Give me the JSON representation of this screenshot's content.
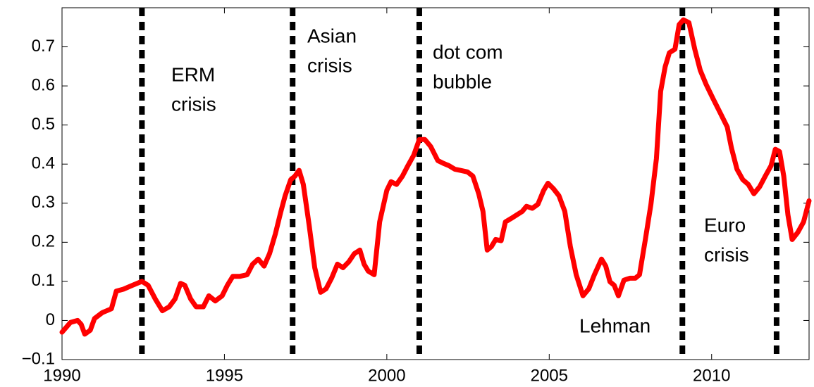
{
  "chart_data": {
    "type": "line",
    "x": [
      1990.0,
      1990.26,
      1990.48,
      1990.59,
      1990.7,
      1990.87,
      1991.0,
      1991.24,
      1991.52,
      1991.67,
      1991.89,
      1992.17,
      1992.46,
      1992.65,
      1992.87,
      1993.09,
      1993.3,
      1993.48,
      1993.65,
      1993.78,
      1993.96,
      1994.13,
      1994.35,
      1994.52,
      1994.72,
      1994.93,
      1995.09,
      1995.26,
      1995.48,
      1995.7,
      1995.87,
      1996.04,
      1996.22,
      1996.39,
      1996.57,
      1996.74,
      1996.87,
      1997.04,
      1997.17,
      1997.3,
      1997.43,
      1997.61,
      1997.78,
      1997.96,
      1998.13,
      1998.3,
      1998.48,
      1998.65,
      1998.83,
      1999.0,
      1999.17,
      1999.3,
      1999.43,
      1999.61,
      1999.78,
      2000.0,
      2000.13,
      2000.3,
      2000.48,
      2000.65,
      2000.83,
      2001.0,
      2001.17,
      2001.35,
      2001.57,
      2001.74,
      2001.91,
      2002.09,
      2002.26,
      2002.48,
      2002.65,
      2002.83,
      2002.96,
      2003.09,
      2003.22,
      2003.35,
      2003.52,
      2003.65,
      2003.83,
      2004.0,
      2004.17,
      2004.3,
      2004.48,
      2004.65,
      2004.83,
      2004.96,
      2005.13,
      2005.3,
      2005.48,
      2005.65,
      2005.83,
      2006.04,
      2006.22,
      2006.39,
      2006.61,
      2006.74,
      2006.87,
      2007.0,
      2007.13,
      2007.3,
      2007.48,
      2007.65,
      2007.78,
      2007.96,
      2008.13,
      2008.3,
      2008.43,
      2008.57,
      2008.7,
      2008.87,
      2009.0,
      2009.13,
      2009.3,
      2009.48,
      2009.65,
      2009.83,
      2010.04,
      2010.26,
      2010.48,
      2010.61,
      2010.78,
      2010.96,
      2011.13,
      2011.3,
      2011.48,
      2011.65,
      2011.83,
      2011.96,
      2012.09,
      2012.22,
      2012.35,
      2012.48,
      2012.65,
      2012.83,
      2013.0
    ],
    "series": [
      {
        "color": "#ff0000",
        "values": [
          -0.03,
          -0.005,
          0.0,
          -0.01,
          -0.035,
          -0.025,
          0.005,
          0.02,
          0.03,
          0.075,
          0.08,
          0.09,
          0.1,
          0.09,
          0.055,
          0.025,
          0.035,
          0.055,
          0.095,
          0.09,
          0.055,
          0.035,
          0.035,
          0.063,
          0.05,
          0.063,
          0.09,
          0.113,
          0.113,
          0.117,
          0.144,
          0.157,
          0.139,
          0.171,
          0.222,
          0.279,
          0.319,
          0.36,
          0.369,
          0.384,
          0.348,
          0.243,
          0.135,
          0.072,
          0.081,
          0.108,
          0.144,
          0.135,
          0.15,
          0.171,
          0.18,
          0.144,
          0.126,
          0.117,
          0.252,
          0.333,
          0.355,
          0.348,
          0.369,
          0.396,
          0.423,
          0.463,
          0.463,
          0.445,
          0.409,
          0.402,
          0.396,
          0.387,
          0.384,
          0.38,
          0.369,
          0.324,
          0.279,
          0.18,
          0.189,
          0.207,
          0.204,
          0.252,
          0.261,
          0.27,
          0.279,
          0.292,
          0.287,
          0.297,
          0.333,
          0.351,
          0.337,
          0.319,
          0.279,
          0.189,
          0.117,
          0.063,
          0.081,
          0.117,
          0.157,
          0.139,
          0.099,
          0.09,
          0.063,
          0.103,
          0.108,
          0.108,
          0.117,
          0.207,
          0.297,
          0.414,
          0.586,
          0.649,
          0.685,
          0.694,
          0.757,
          0.769,
          0.762,
          0.694,
          0.64,
          0.604,
          0.568,
          0.532,
          0.495,
          0.441,
          0.387,
          0.36,
          0.348,
          0.324,
          0.342,
          0.369,
          0.396,
          0.438,
          0.432,
          0.369,
          0.27,
          0.207,
          0.225,
          0.252,
          0.306
        ]
      }
    ],
    "xlim": [
      1990,
      2013
    ],
    "xticks": [
      1990,
      1995,
      2000,
      2005,
      2010
    ],
    "ylim": [
      -0.1,
      0.8
    ],
    "yticks": [
      {
        "value": -0.1,
        "label": "−0.1"
      },
      0,
      0.1,
      0.2,
      0.3,
      0.4,
      0.5,
      0.6,
      0.7
    ],
    "event_lines": [
      1992.46,
      1997.1,
      2001.0,
      2009.1,
      2012.0
    ],
    "annotations": [
      {
        "lines": [
          "ERM",
          "crisis"
        ]
      },
      {
        "lines": [
          "Asian",
          "crisis"
        ]
      },
      {
        "lines": [
          "dot com",
          "bubble"
        ]
      },
      {
        "lines": [
          "Lehman"
        ]
      },
      {
        "lines": [
          "Euro",
          "crisis"
        ]
      }
    ]
  }
}
